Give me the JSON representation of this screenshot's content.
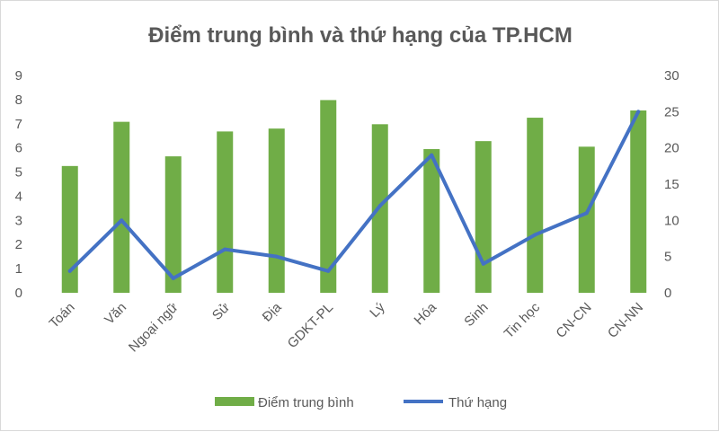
{
  "chart_data": {
    "type": "bar",
    "title": "Điểm trung bình và thứ hạng của TP.HCM",
    "categories": [
      "Toán",
      "Văn",
      "Ngoại ngữ",
      "Sử",
      "Địa",
      "GDKT-PL",
      "Lý",
      "Hóa",
      "Sinh",
      "Tin học",
      "CN-CN",
      "CN-NN"
    ],
    "series": [
      {
        "name": "Điểm trung bình",
        "type": "bar",
        "axis": "left",
        "color": "#70ad47",
        "values": [
          5.25,
          7.08,
          5.65,
          6.68,
          6.8,
          7.98,
          6.98,
          5.95,
          6.28,
          7.25,
          6.05,
          7.55
        ]
      },
      {
        "name": "Thứ hạng",
        "type": "line",
        "axis": "right",
        "color": "#4472c4",
        "values": [
          3,
          10,
          2,
          6,
          5,
          3,
          12,
          19,
          4,
          8,
          11,
          25
        ]
      }
    ],
    "y_left": {
      "min": 0,
      "max": 9,
      "step": 1,
      "ticks": [
        "0",
        "1",
        "2",
        "3",
        "4",
        "5",
        "6",
        "7",
        "8",
        "9"
      ]
    },
    "y_right": {
      "min": 0,
      "max": 30,
      "step": 5,
      "ticks": [
        "0",
        "5",
        "10",
        "15",
        "20",
        "25",
        "30"
      ]
    },
    "grid": false,
    "legend": "bottom"
  }
}
